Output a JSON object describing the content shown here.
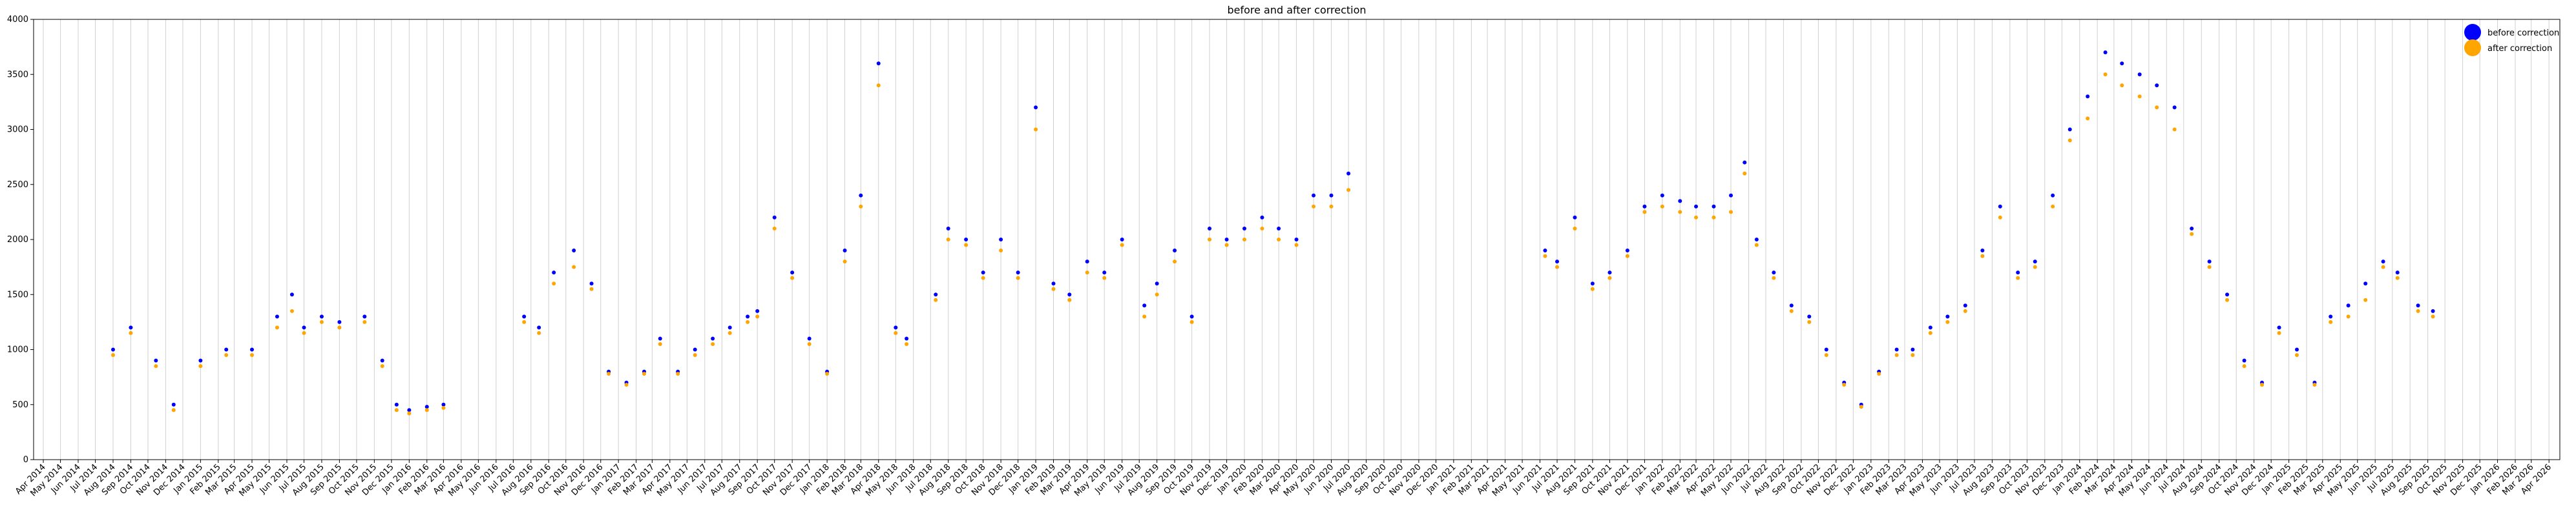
{
  "chart_data": {
    "type": "scatter",
    "title": "before and after correction",
    "xlabel": "",
    "ylabel": "",
    "x_range": [
      "2014-03-15",
      "2026-04-20"
    ],
    "ylim": [
      0,
      4000
    ],
    "y_ticks": [
      0,
      500,
      1000,
      1500,
      2000,
      2500,
      3000,
      3500,
      4000
    ],
    "grid": {
      "vertical": true,
      "horizontal": false
    },
    "legend_position": "top-right",
    "x_tick_labels": [
      "Apr 2014",
      "May 2014",
      "Jun 2014",
      "Jul 2014",
      "Aug 2014",
      "Sep 2014",
      "Oct 2014",
      "Nov 2014",
      "Dec 2014",
      "Jan 2015",
      "Feb 2015",
      "Mar 2015",
      "Apr 2015",
      "May 2015",
      "Jun 2015",
      "Jul 2015",
      "Aug 2015",
      "Sep 2015",
      "Oct 2015",
      "Nov 2015",
      "Dec 2015",
      "Jan 2016",
      "Feb 2016",
      "Mar 2016",
      "Apr 2016",
      "May 2016",
      "Jun 2016",
      "Jul 2016",
      "Aug 2016",
      "Sep 2016",
      "Oct 2016",
      "Nov 2016",
      "Dec 2016",
      "Jan 2017",
      "Feb 2017",
      "Mar 2017",
      "Apr 2017",
      "May 2017",
      "Jun 2017",
      "Jul 2017",
      "Aug 2017",
      "Sep 2017",
      "Oct 2017",
      "Nov 2017",
      "Dec 2017",
      "Jan 2018",
      "Feb 2018",
      "Mar 2018",
      "Apr 2018",
      "May 2018",
      "Jun 2018",
      "Jul 2018",
      "Aug 2018",
      "Sep 2018",
      "Oct 2018",
      "Nov 2018",
      "Dec 2018",
      "Jan 2019",
      "Feb 2019",
      "Mar 2019",
      "Apr 2019",
      "May 2019",
      "Jun 2019",
      "Jul 2019",
      "Aug 2019",
      "Sep 2019",
      "Oct 2019",
      "Nov 2019",
      "Dec 2019",
      "Jan 2020",
      "Feb 2020",
      "Mar 2020",
      "Apr 2020",
      "May 2020",
      "Jun 2020",
      "Jul 2020",
      "Aug 2020",
      "Sep 2020",
      "Oct 2020",
      "Nov 2020",
      "Dec 2020",
      "Jan 2021",
      "Feb 2021",
      "Mar 2021",
      "Apr 2021",
      "May 2021",
      "Jun 2021",
      "Jul 2021",
      "Aug 2021",
      "Sep 2021",
      "Oct 2021",
      "Nov 2021",
      "Dec 2021",
      "Jan 2022",
      "Feb 2022",
      "Mar 2022",
      "Apr 2022",
      "May 2022",
      "Jun 2022",
      "Jul 2022",
      "Aug 2022",
      "Sep 2022",
      "Oct 2022",
      "Nov 2022",
      "Dec 2022",
      "Jan 2023",
      "Feb 2023",
      "Mar 2023",
      "Apr 2023",
      "May 2023",
      "Jun 2023",
      "Jul 2023",
      "Aug 2023",
      "Sep 2023",
      "Oct 2023",
      "Nov 2023",
      "Dec 2023",
      "Jan 2024",
      "Feb 2024",
      "Mar 2024",
      "Apr 2024",
      "May 2024",
      "Jun 2024",
      "Jul 2024",
      "Aug 2024",
      "Sep 2024",
      "Oct 2024",
      "Nov 2024",
      "Dec 2024",
      "Jan 2025",
      "Feb 2025",
      "Mar 2025",
      "Apr 2025",
      "May 2025",
      "Jun 2025",
      "Jul 2025",
      "Aug 2025",
      "Sep 2025",
      "Oct 2025",
      "Nov 2025",
      "Dec 2025",
      "Jan 2026",
      "Feb 2026",
      "Mar 2026",
      "Apr 2026"
    ],
    "series": [
      {
        "name": "before correction",
        "color": "#0000ff",
        "x": [
          "2014-08-01",
          "2014-09-01",
          "2014-10-15",
          "2014-11-15",
          "2015-01-01",
          "2015-02-15",
          "2015-04-01",
          "2015-05-15",
          "2015-06-10",
          "2015-07-01",
          "2015-08-01",
          "2015-09-01",
          "2015-10-15",
          "2015-11-15",
          "2015-12-10",
          "2016-01-01",
          "2016-02-01",
          "2016-03-01",
          "2016-07-20",
          "2016-08-15",
          "2016-09-10",
          "2016-10-15",
          "2016-11-15",
          "2016-12-15",
          "2017-01-15",
          "2017-02-15",
          "2017-03-15",
          "2017-04-15",
          "2017-05-15",
          "2017-06-15",
          "2017-07-15",
          "2017-08-15",
          "2017-09-01",
          "2017-10-01",
          "2017-11-01",
          "2017-12-01",
          "2018-01-01",
          "2018-02-01",
          "2018-03-01",
          "2018-04-01",
          "2018-05-01",
          "2018-05-20",
          "2018-07-10",
          "2018-08-01",
          "2018-09-01",
          "2018-10-01",
          "2018-11-01",
          "2018-12-01",
          "2019-01-01",
          "2019-02-01",
          "2019-03-01",
          "2019-04-01",
          "2019-05-01",
          "2019-06-01",
          "2019-07-10",
          "2019-08-01",
          "2019-09-01",
          "2019-10-01",
          "2019-11-01",
          "2019-12-01",
          "2020-01-01",
          "2020-02-01",
          "2020-03-01",
          "2020-04-01",
          "2020-05-01",
          "2020-06-01",
          "2020-07-01",
          "2021-06-10",
          "2021-07-01",
          "2021-08-01",
          "2021-09-01",
          "2021-10-01",
          "2021-11-01",
          "2021-12-01",
          "2022-01-01",
          "2022-02-01",
          "2022-03-01",
          "2022-04-01",
          "2022-05-01",
          "2022-05-25",
          "2022-06-15",
          "2022-07-15",
          "2022-08-15",
          "2022-09-15",
          "2022-10-15",
          "2022-11-15",
          "2022-12-15",
          "2023-01-15",
          "2023-02-15",
          "2023-03-15",
          "2023-04-15",
          "2023-05-15",
          "2023-06-15",
          "2023-07-15",
          "2023-08-15",
          "2023-09-15",
          "2023-10-15",
          "2023-11-15",
          "2023-12-15",
          "2024-01-15",
          "2024-02-15",
          "2024-03-15",
          "2024-04-15",
          "2024-05-15",
          "2024-06-15",
          "2024-07-15",
          "2024-08-15",
          "2024-09-15",
          "2024-10-15",
          "2024-11-15",
          "2024-12-15",
          "2025-01-15",
          "2025-02-15",
          "2025-03-15",
          "2025-04-15",
          "2025-05-15",
          "2025-06-15",
          "2025-07-10",
          "2025-08-15",
          "2025-09-10"
        ],
        "y": [
          1000,
          1200,
          900,
          500,
          900,
          1000,
          1000,
          1300,
          1500,
          1200,
          1300,
          1250,
          1300,
          900,
          500,
          450,
          480,
          500,
          1300,
          1200,
          1700,
          1900,
          1600,
          800,
          700,
          800,
          1100,
          800,
          1000,
          1100,
          1200,
          1300,
          1350,
          2200,
          1700,
          1100,
          800,
          1900,
          2400,
          3600,
          1200,
          1100,
          1500,
          2100,
          2000,
          1700,
          2000,
          1700,
          3200,
          1600,
          1500,
          1800,
          1700,
          2000,
          1400,
          1600,
          1900,
          1300,
          2100,
          2000,
          2100,
          2200,
          2100,
          2000,
          2400,
          2400,
          2600,
          1900,
          1800,
          2200,
          1600,
          1700,
          1900,
          2300,
          2400,
          2350,
          2300,
          2300,
          2400,
          2700,
          2000,
          1700,
          1400,
          1300,
          1000,
          700,
          500,
          800,
          1000,
          1000,
          1200,
          1300,
          1400,
          1900,
          2300,
          1700,
          1800,
          2400,
          3000,
          3300,
          3700,
          3600,
          3500,
          3400,
          3200,
          2100,
          1800,
          1500,
          900,
          700,
          1200,
          1000,
          700,
          1300,
          1400,
          1600,
          1800,
          1700,
          1400,
          1350
        ]
      },
      {
        "name": "after correction",
        "color": "#ffa500",
        "x": [
          "2014-08-01",
          "2014-09-01",
          "2014-10-15",
          "2014-11-15",
          "2015-01-01",
          "2015-02-15",
          "2015-04-01",
          "2015-05-15",
          "2015-06-10",
          "2015-07-01",
          "2015-08-01",
          "2015-09-01",
          "2015-10-15",
          "2015-11-15",
          "2015-12-10",
          "2016-01-01",
          "2016-02-01",
          "2016-03-01",
          "2016-07-20",
          "2016-08-15",
          "2016-09-10",
          "2016-10-15",
          "2016-11-15",
          "2016-12-15",
          "2017-01-15",
          "2017-02-15",
          "2017-03-15",
          "2017-04-15",
          "2017-05-15",
          "2017-06-15",
          "2017-07-15",
          "2017-08-15",
          "2017-09-01",
          "2017-10-01",
          "2017-11-01",
          "2017-12-01",
          "2018-01-01",
          "2018-02-01",
          "2018-03-01",
          "2018-04-01",
          "2018-05-01",
          "2018-05-20",
          "2018-07-10",
          "2018-08-01",
          "2018-09-01",
          "2018-10-01",
          "2018-11-01",
          "2018-12-01",
          "2019-01-01",
          "2019-02-01",
          "2019-03-01",
          "2019-04-01",
          "2019-05-01",
          "2019-06-01",
          "2019-07-10",
          "2019-08-01",
          "2019-09-01",
          "2019-10-01",
          "2019-11-01",
          "2019-12-01",
          "2020-01-01",
          "2020-02-01",
          "2020-03-01",
          "2020-04-01",
          "2020-05-01",
          "2020-06-01",
          "2020-07-01",
          "2021-06-10",
          "2021-07-01",
          "2021-08-01",
          "2021-09-01",
          "2021-10-01",
          "2021-11-01",
          "2021-12-01",
          "2022-01-01",
          "2022-02-01",
          "2022-03-01",
          "2022-04-01",
          "2022-05-01",
          "2022-05-25",
          "2022-06-15",
          "2022-07-15",
          "2022-08-15",
          "2022-09-15",
          "2022-10-15",
          "2022-11-15",
          "2022-12-15",
          "2023-01-15",
          "2023-02-15",
          "2023-03-15",
          "2023-04-15",
          "2023-05-15",
          "2023-06-15",
          "2023-07-15",
          "2023-08-15",
          "2023-09-15",
          "2023-10-15",
          "2023-11-15",
          "2023-12-15",
          "2024-01-15",
          "2024-02-15",
          "2024-03-15",
          "2024-04-15",
          "2024-05-15",
          "2024-06-15",
          "2024-07-15",
          "2024-08-15",
          "2024-09-15",
          "2024-10-15",
          "2024-11-15",
          "2024-12-15",
          "2025-01-15",
          "2025-02-15",
          "2025-03-15",
          "2025-04-15",
          "2025-05-15",
          "2025-06-15",
          "2025-07-10",
          "2025-08-15",
          "2025-09-10"
        ],
        "y": [
          950,
          1150,
          850,
          450,
          850,
          950,
          950,
          1200,
          1350,
          1150,
          1250,
          1200,
          1250,
          850,
          450,
          420,
          450,
          470,
          1250,
          1150,
          1600,
          1750,
          1550,
          780,
          680,
          780,
          1050,
          780,
          950,
          1050,
          1150,
          1250,
          1300,
          2100,
          1650,
          1050,
          780,
          1800,
          2300,
          3400,
          1150,
          1050,
          1450,
          2000,
          1950,
          1650,
          1900,
          1650,
          3000,
          1550,
          1450,
          1700,
          1650,
          1950,
          1300,
          1500,
          1800,
          1250,
          2000,
          1950,
          2000,
          2100,
          2000,
          1950,
          2300,
          2300,
          2450,
          1850,
          1750,
          2100,
          1550,
          1650,
          1850,
          2250,
          2300,
          2250,
          2200,
          2200,
          2250,
          2600,
          1950,
          1650,
          1350,
          1250,
          950,
          680,
          480,
          780,
          950,
          950,
          1150,
          1250,
          1350,
          1850,
          2200,
          1650,
          1750,
          2300,
          2900,
          3100,
          3500,
          3400,
          3300,
          3200,
          3000,
          2050,
          1750,
          1450,
          850,
          680,
          1150,
          950,
          680,
          1250,
          1300,
          1450,
          1750,
          1650,
          1350,
          1300
        ]
      }
    ]
  }
}
